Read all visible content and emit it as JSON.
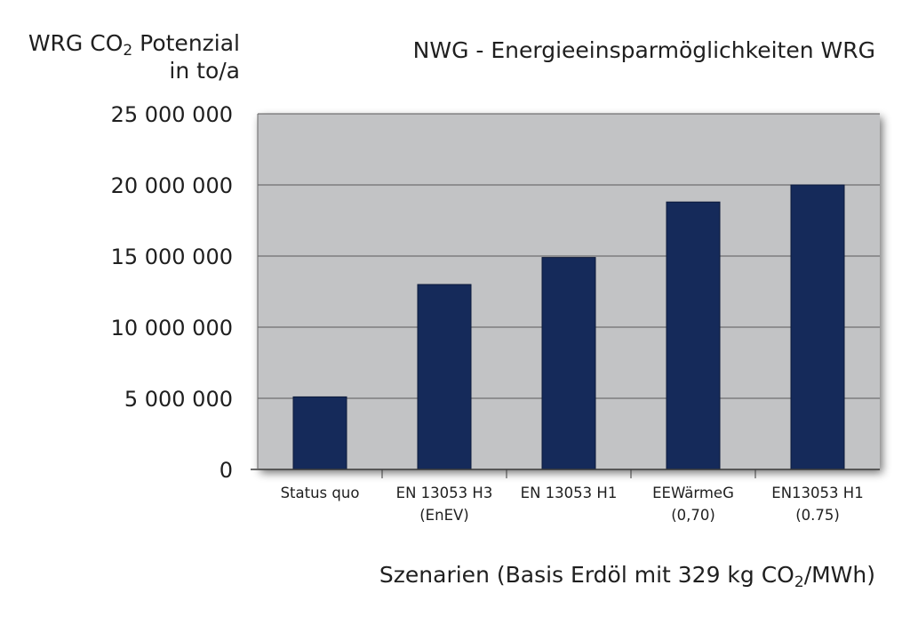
{
  "chart_data": {
    "type": "bar",
    "title": "NWG - Energieeinsparmöglichkeiten WRG",
    "ylabel": {
      "main": "WRG CO",
      "sub": "2",
      "rest": " Potenzial",
      "line2": "in to/a"
    },
    "xlabel": {
      "main": "Szenarien (Basis Erdöl mit 329 kg CO",
      "sub": "2",
      "rest": "/MWh)"
    },
    "categories": [
      [
        "Status quo"
      ],
      [
        "EN 13053 H3",
        "(EnEV)"
      ],
      [
        "EN 13053 H1"
      ],
      [
        "EEWärmeG",
        "(0,70)"
      ],
      [
        "EN13053 H1",
        "(0.75)"
      ]
    ],
    "values": [
      5100000,
      13000000,
      14900000,
      18800000,
      20000000
    ],
    "yticks": [
      0,
      5000000,
      10000000,
      15000000,
      20000000,
      25000000
    ],
    "ytick_labels": [
      "0",
      "5 000 000",
      "10 000 000",
      "15 000 000",
      "20 000 000",
      "25 000 000"
    ],
    "ylim": [
      0,
      25000000
    ],
    "grid": true,
    "legend": "none",
    "colors": {
      "bar": "#152a5a",
      "plot_bg": "#c2c3c5",
      "grid": "#5a5a5a"
    }
  }
}
